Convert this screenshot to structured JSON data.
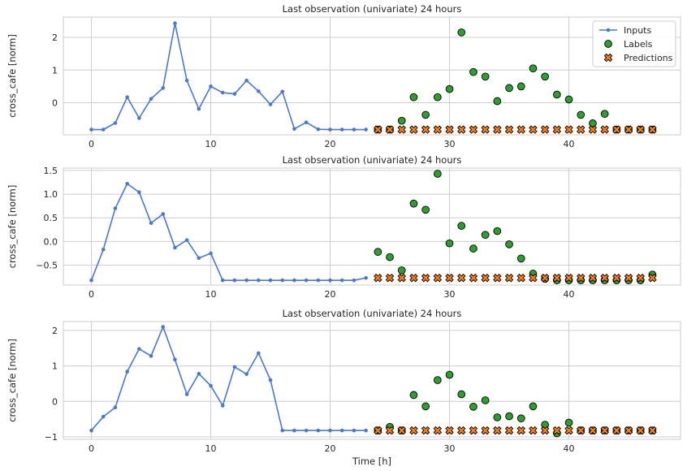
{
  "chart_data": [
    {
      "type": "scatter",
      "title": "Last observation (univariate) 24 hours",
      "ylabel": "cross_cafe [norm]",
      "xlabel": "",
      "xlim": [
        -2.35,
        49.35
      ],
      "ylim": [
        -0.98,
        2.62
      ],
      "xticks": [
        0,
        10,
        20,
        30,
        40
      ],
      "yticks": [
        0,
        1,
        2
      ],
      "legend": {
        "placement": "top-right",
        "entries": [
          "Inputs",
          "Labels",
          "Predictions"
        ]
      },
      "grid": true,
      "series": [
        {
          "name": "Inputs",
          "mark": "line+dot",
          "x": [
            0,
            1,
            2,
            3,
            4,
            5,
            6,
            7,
            8,
            9,
            10,
            11,
            12,
            13,
            14,
            15,
            16,
            17,
            18,
            19,
            20,
            21,
            22,
            23
          ],
          "y": [
            -0.82,
            -0.82,
            -0.62,
            0.17,
            -0.47,
            0.12,
            0.45,
            2.43,
            0.68,
            -0.19,
            0.5,
            0.31,
            0.27,
            0.68,
            0.35,
            -0.05,
            0.34,
            -0.8,
            -0.6,
            -0.81,
            -0.82,
            -0.82,
            -0.82,
            -0.82
          ]
        },
        {
          "name": "Labels",
          "mark": "circle",
          "x": [
            24,
            25,
            26,
            27,
            28,
            29,
            30,
            31,
            32,
            33,
            34,
            35,
            36,
            37,
            38,
            39,
            40,
            41,
            42,
            43,
            44,
            45,
            46,
            47
          ],
          "y": [
            -0.82,
            -0.82,
            -0.55,
            0.17,
            -0.37,
            0.17,
            0.42,
            2.15,
            0.94,
            0.8,
            0.05,
            0.45,
            0.5,
            1.05,
            0.8,
            0.25,
            0.1,
            -0.37,
            -0.63,
            -0.34,
            -0.82,
            -0.82,
            -0.82,
            -0.82
          ]
        },
        {
          "name": "Predictions",
          "mark": "x",
          "x": [
            24,
            25,
            26,
            27,
            28,
            29,
            30,
            31,
            32,
            33,
            34,
            35,
            36,
            37,
            38,
            39,
            40,
            41,
            42,
            43,
            44,
            45,
            46,
            47
          ],
          "y": [
            -0.82,
            -0.82,
            -0.82,
            -0.82,
            -0.82,
            -0.82,
            -0.82,
            -0.82,
            -0.82,
            -0.82,
            -0.82,
            -0.82,
            -0.82,
            -0.82,
            -0.82,
            -0.82,
            -0.82,
            -0.82,
            -0.82,
            -0.82,
            -0.82,
            -0.82,
            -0.82,
            -0.82
          ]
        }
      ]
    },
    {
      "type": "scatter",
      "title": "Last observation (univariate) 24 hours",
      "ylabel": "cross_cafe [norm]",
      "xlabel": "",
      "xlim": [
        -2.35,
        49.35
      ],
      "ylim": [
        -0.92,
        1.55
      ],
      "xticks": [
        0,
        10,
        20,
        30,
        40
      ],
      "yticks": [
        -0.5,
        0.0,
        0.5,
        1.0,
        1.5
      ],
      "yticklabels": [
        "−0.5",
        "0.0",
        "0.5",
        "1.0",
        "1.5"
      ],
      "grid": true,
      "series": [
        {
          "name": "Inputs",
          "mark": "line+dot",
          "x": [
            0,
            1,
            2,
            3,
            4,
            5,
            6,
            7,
            8,
            9,
            10,
            11,
            12,
            13,
            14,
            15,
            16,
            17,
            18,
            19,
            20,
            21,
            22,
            23
          ],
          "y": [
            -0.82,
            -0.17,
            0.7,
            1.22,
            1.04,
            0.39,
            0.58,
            -0.13,
            0.03,
            -0.35,
            -0.25,
            -0.82,
            -0.82,
            -0.82,
            -0.82,
            -0.82,
            -0.82,
            -0.82,
            -0.82,
            -0.82,
            -0.82,
            -0.82,
            -0.82,
            -0.77
          ]
        },
        {
          "name": "Labels",
          "mark": "circle",
          "x": [
            24,
            25,
            26,
            27,
            28,
            29,
            30,
            31,
            32,
            33,
            34,
            35,
            36,
            37,
            38,
            39,
            40,
            41,
            42,
            43,
            44,
            45,
            46,
            47
          ],
          "y": [
            -0.22,
            -0.33,
            -0.61,
            0.8,
            0.67,
            1.43,
            -0.04,
            0.33,
            -0.15,
            0.14,
            0.22,
            -0.06,
            -0.36,
            -0.68,
            -0.79,
            -0.82,
            -0.82,
            -0.82,
            -0.82,
            -0.82,
            -0.82,
            -0.82,
            -0.82,
            -0.7
          ]
        },
        {
          "name": "Predictions",
          "mark": "x",
          "x": [
            24,
            25,
            26,
            27,
            28,
            29,
            30,
            31,
            32,
            33,
            34,
            35,
            36,
            37,
            38,
            39,
            40,
            41,
            42,
            43,
            44,
            45,
            46,
            47
          ],
          "y": [
            -0.77,
            -0.77,
            -0.77,
            -0.77,
            -0.77,
            -0.77,
            -0.77,
            -0.77,
            -0.77,
            -0.77,
            -0.77,
            -0.77,
            -0.77,
            -0.77,
            -0.77,
            -0.77,
            -0.77,
            -0.77,
            -0.77,
            -0.77,
            -0.77,
            -0.77,
            -0.77,
            -0.77
          ]
        }
      ]
    },
    {
      "type": "scatter",
      "title": "Last observation (univariate) 24 hours",
      "ylabel": "cross_cafe [norm]",
      "xlabel": "Time [h]",
      "xlim": [
        -2.35,
        49.35
      ],
      "ylim": [
        -1.07,
        2.25
      ],
      "xticks": [
        0,
        10,
        20,
        30,
        40
      ],
      "yticks": [
        -1,
        0,
        1,
        2
      ],
      "yticklabels": [
        "−1",
        "0",
        "1",
        "2"
      ],
      "grid": true,
      "series": [
        {
          "name": "Inputs",
          "mark": "line+dot",
          "x": [
            0,
            1,
            2,
            3,
            4,
            5,
            6,
            7,
            8,
            9,
            10,
            11,
            12,
            13,
            14,
            15,
            16,
            17,
            18,
            19,
            20,
            21,
            22,
            23
          ],
          "y": [
            -0.82,
            -0.43,
            -0.17,
            0.84,
            1.48,
            1.28,
            2.1,
            1.18,
            0.2,
            0.78,
            0.44,
            -0.12,
            0.97,
            0.77,
            1.36,
            0.6,
            -0.82,
            -0.82,
            -0.82,
            -0.82,
            -0.82,
            -0.82,
            -0.82,
            -0.82
          ]
        },
        {
          "name": "Labels",
          "mark": "circle",
          "x": [
            24,
            25,
            26,
            27,
            28,
            29,
            30,
            31,
            32,
            33,
            34,
            35,
            36,
            37,
            38,
            39,
            40,
            41,
            42,
            43,
            44,
            45,
            46,
            47
          ],
          "y": [
            -0.82,
            -0.72,
            -0.82,
            0.18,
            -0.14,
            0.6,
            0.75,
            0.2,
            -0.15,
            0.03,
            -0.45,
            -0.42,
            -0.48,
            -0.14,
            -0.66,
            -0.9,
            -0.6,
            -0.82,
            -0.82,
            -0.82,
            -0.82,
            -0.82,
            -0.82,
            -0.82
          ]
        },
        {
          "name": "Predictions",
          "mark": "x",
          "x": [
            24,
            25,
            26,
            27,
            28,
            29,
            30,
            31,
            32,
            33,
            34,
            35,
            36,
            37,
            38,
            39,
            40,
            41,
            42,
            43,
            44,
            45,
            46,
            47
          ],
          "y": [
            -0.82,
            -0.82,
            -0.82,
            -0.82,
            -0.82,
            -0.82,
            -0.82,
            -0.82,
            -0.82,
            -0.82,
            -0.82,
            -0.82,
            -0.82,
            -0.82,
            -0.82,
            -0.82,
            -0.82,
            -0.82,
            -0.82,
            -0.82,
            -0.82,
            -0.82,
            -0.82,
            -0.82
          ]
        }
      ]
    }
  ],
  "colors": {
    "inputs": "#4878cf",
    "labels": "#2ca02c",
    "predictions": "#ff7f0e",
    "edge": "#000000",
    "grid": "#cccccc",
    "spine": "#cccccc"
  }
}
